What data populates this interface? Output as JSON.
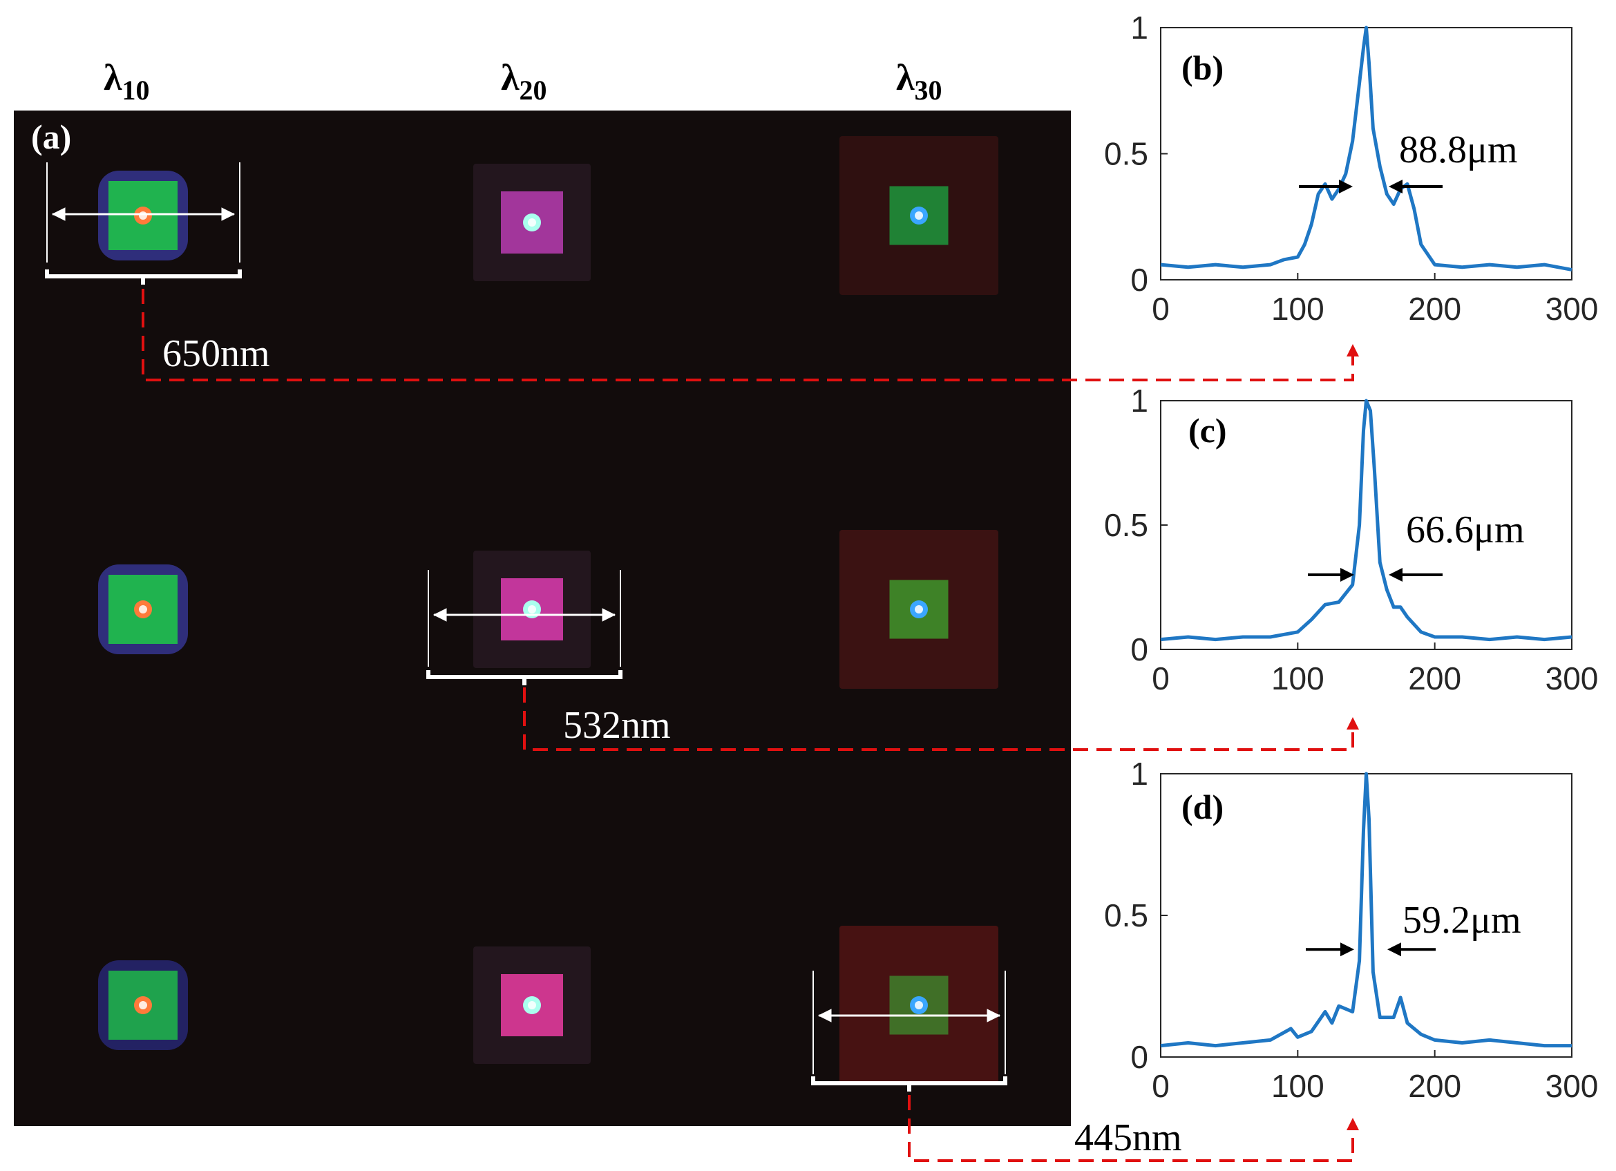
{
  "column_headers": [
    {
      "symbol": "λ",
      "sub": "10"
    },
    {
      "symbol": "λ",
      "sub": "20"
    },
    {
      "symbol": "λ",
      "sub": "30"
    }
  ],
  "panel_a": {
    "label": "(a)"
  },
  "wavelength_labels": [
    "650nm",
    "532nm",
    "445nm"
  ],
  "colors": {
    "image_bg": "#120c0c",
    "line_profile": "#1f77c4",
    "connector": "#e01010",
    "marker": "#ffffff",
    "arrow": "#000000"
  },
  "foci": [
    {
      "row": 1,
      "col": 1,
      "core": "#ff7a3a",
      "square": "#1fc24a",
      "halo": "#3a3aa0"
    },
    {
      "row": 1,
      "col": 2,
      "core": "#aaffee",
      "square": "#b03aa8",
      "halo": "#2a1a24"
    },
    {
      "row": 1,
      "col": 3,
      "core": "#3aa6ff",
      "square": "#1f8f3a",
      "halo": "#3a1212"
    },
    {
      "row": 2,
      "col": 1,
      "core": "#ff7a3a",
      "square": "#1fc24a",
      "halo": "#3a3aa0"
    },
    {
      "row": 2,
      "col": 2,
      "core": "#aaffee",
      "square": "#d43aa8",
      "halo": "#2a1a24"
    },
    {
      "row": 2,
      "col": 3,
      "core": "#3aa6ff",
      "square": "#3f8f2a",
      "halo": "#4a1414"
    },
    {
      "row": 3,
      "col": 1,
      "core": "#ff7a3a",
      "square": "#1fb04a",
      "halo": "#2a2a80"
    },
    {
      "row": 3,
      "col": 2,
      "core": "#aaffee",
      "square": "#e03a9a",
      "halo": "#2a1a24"
    },
    {
      "row": 3,
      "col": 3,
      "core": "#3aa6ff",
      "square": "#3f7a2a",
      "halo": "#5a1414"
    }
  ],
  "chart_data": [
    {
      "type": "line",
      "label": "(b)",
      "annotation": "88.8μm",
      "xlim": [
        0,
        300
      ],
      "ylim": [
        0,
        1
      ],
      "xticks": [
        "0",
        "100",
        "200",
        "300"
      ],
      "yticks": [
        "0",
        "0.5",
        "1"
      ],
      "x": [
        0,
        20,
        40,
        60,
        80,
        90,
        100,
        105,
        110,
        115,
        120,
        125,
        130,
        135,
        140,
        145,
        148,
        150,
        152,
        155,
        160,
        165,
        170,
        175,
        180,
        185,
        190,
        200,
        220,
        240,
        260,
        280,
        300
      ],
      "y": [
        0.06,
        0.05,
        0.06,
        0.05,
        0.06,
        0.08,
        0.09,
        0.14,
        0.22,
        0.34,
        0.38,
        0.32,
        0.36,
        0.42,
        0.55,
        0.78,
        0.92,
        1.0,
        0.86,
        0.6,
        0.45,
        0.34,
        0.3,
        0.36,
        0.38,
        0.28,
        0.14,
        0.06,
        0.05,
        0.06,
        0.05,
        0.06,
        0.04
      ]
    },
    {
      "type": "line",
      "label": "(c)",
      "annotation": "66.6μm",
      "xlim": [
        0,
        300
      ],
      "ylim": [
        0,
        1
      ],
      "xticks": [
        "0",
        "100",
        "200",
        "300"
      ],
      "yticks": [
        "0",
        "0.5",
        "1"
      ],
      "x": [
        0,
        20,
        40,
        60,
        80,
        100,
        110,
        120,
        130,
        140,
        145,
        148,
        150,
        153,
        156,
        160,
        165,
        170,
        175,
        180,
        190,
        200,
        220,
        240,
        260,
        280,
        300
      ],
      "y": [
        0.04,
        0.05,
        0.04,
        0.05,
        0.05,
        0.07,
        0.12,
        0.18,
        0.19,
        0.26,
        0.5,
        0.88,
        1.0,
        0.96,
        0.72,
        0.35,
        0.24,
        0.17,
        0.17,
        0.13,
        0.07,
        0.05,
        0.05,
        0.04,
        0.05,
        0.04,
        0.05
      ]
    },
    {
      "type": "line",
      "label": "(d)",
      "annotation": "59.2μm",
      "xlim": [
        0,
        300
      ],
      "ylim": [
        0,
        1
      ],
      "xticks": [
        "0",
        "100",
        "200",
        "300"
      ],
      "yticks": [
        "0",
        "0.5",
        "1"
      ],
      "x": [
        0,
        20,
        40,
        60,
        80,
        95,
        100,
        110,
        120,
        125,
        130,
        140,
        145,
        148,
        150,
        152,
        155,
        160,
        170,
        175,
        180,
        190,
        200,
        220,
        240,
        260,
        280,
        300
      ],
      "y": [
        0.04,
        0.05,
        0.04,
        0.05,
        0.06,
        0.1,
        0.07,
        0.09,
        0.16,
        0.12,
        0.18,
        0.16,
        0.34,
        0.8,
        1.0,
        0.84,
        0.3,
        0.14,
        0.14,
        0.21,
        0.12,
        0.08,
        0.06,
        0.05,
        0.06,
        0.05,
        0.04,
        0.04
      ]
    }
  ]
}
